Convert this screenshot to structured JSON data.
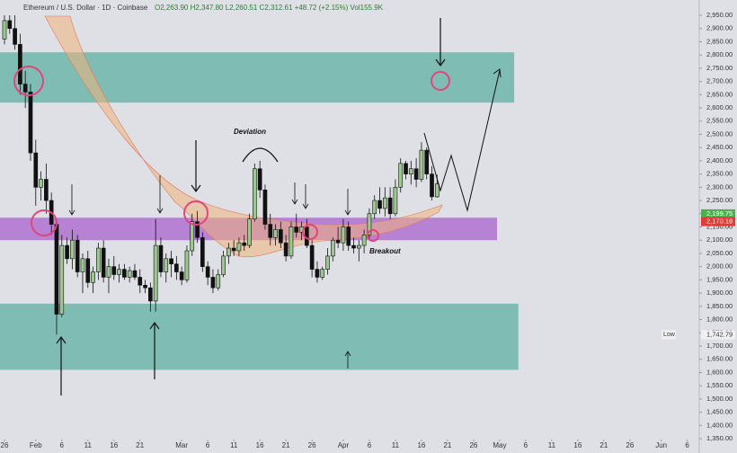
{
  "chart_data": {
    "type": "candlestick",
    "header": {
      "symbol": "Ethereum / U.S. Dollar · 1D · Coinbase",
      "ohlc": "O2,263.90 H2,347.80 L2,260.51 C2,312.61 +48.72 (+2.15%) Vol155.9K"
    },
    "up_color": "#9cc98f",
    "down_color": "#111111",
    "x": [
      0,
      1,
      2,
      3,
      4,
      5,
      6,
      7,
      8,
      9,
      10,
      11,
      12,
      13,
      14,
      15,
      16,
      17,
      18,
      19,
      20,
      21,
      22,
      23,
      24,
      25,
      26,
      27,
      28,
      29,
      30,
      31,
      32,
      33,
      34,
      35,
      36,
      37,
      38,
      39,
      40,
      41,
      42,
      43,
      44,
      45,
      46,
      47,
      48,
      49,
      50,
      51,
      52,
      53,
      54,
      55,
      56,
      57,
      58,
      59,
      60,
      61,
      62,
      63,
      64,
      65,
      66,
      67,
      68,
      69,
      70,
      71,
      72,
      73,
      74,
      75,
      76,
      77,
      78,
      79,
      80,
      81,
      82,
      83
    ],
    "open": [
      2860,
      2930,
      2900,
      2840,
      2690,
      2660,
      2430,
      2300,
      2330,
      2250,
      2160,
      1820,
      2080,
      2030,
      2100,
      1980,
      2030,
      1940,
      1980,
      2070,
      1960,
      2000,
      1970,
      1990,
      1960,
      1985,
      1960,
      1930,
      1920,
      1870,
      2080,
      1980,
      2030,
      2010,
      1980,
      1950,
      2060,
      2170,
      2110,
      2000,
      1960,
      1920,
      1970,
      2040,
      2070,
      2060,
      2090,
      2080,
      2180,
      2370,
      2290,
      2160,
      2110,
      2140,
      2090,
      2040,
      2150,
      2130,
      2150,
      2080,
      1990,
      1960,
      1990,
      2040,
      2100,
      2090,
      2150,
      2080,
      2070,
      2080,
      2120,
      2200,
      2250,
      2220,
      2260,
      2200,
      2300,
      2390,
      2350,
      2370,
      2330,
      2440,
      2350,
      2263.9
    ],
    "high": [
      2950,
      2950,
      2950,
      2880,
      2740,
      2690,
      2480,
      2360,
      2390,
      2280,
      2180,
      2120,
      2110,
      2140,
      2120,
      2050,
      2060,
      2000,
      2090,
      2100,
      2030,
      2040,
      2010,
      2010,
      2000,
      2010,
      1990,
      1950,
      1940,
      2180,
      2110,
      2050,
      2060,
      2040,
      2000,
      2080,
      2200,
      2210,
      2130,
      2020,
      1990,
      1990,
      2060,
      2090,
      2100,
      2110,
      2120,
      2200,
      2390,
      2400,
      2310,
      2200,
      2160,
      2170,
      2120,
      2170,
      2200,
      2170,
      2180,
      2100,
      2020,
      2000,
      2070,
      2110,
      2150,
      2180,
      2170,
      2110,
      2100,
      2140,
      2220,
      2270,
      2300,
      2300,
      2300,
      2330,
      2410,
      2400,
      2400,
      2410,
      2470,
      2450,
      2380,
      2347.8
    ],
    "low": [
      2840,
      2880,
      2820,
      2650,
      2600,
      2400,
      2230,
      2250,
      2200,
      2120,
      1742.79,
      1810,
      2010,
      1990,
      1960,
      1900,
      1920,
      1900,
      1950,
      1940,
      1900,
      1950,
      1940,
      1950,
      1940,
      1950,
      1900,
      1900,
      1830,
      1830,
      1960,
      1940,
      1960,
      1950,
      1930,
      1940,
      2040,
      2090,
      1980,
      1930,
      1900,
      1910,
      1960,
      2010,
      2040,
      2040,
      2060,
      2070,
      2170,
      2260,
      2140,
      2080,
      2080,
      2070,
      2020,
      2030,
      2110,
      2100,
      2070,
      1960,
      1940,
      1950,
      1970,
      2020,
      2070,
      2060,
      2060,
      2050,
      2020,
      2050,
      2100,
      2180,
      2200,
      2190,
      2180,
      2190,
      2280,
      2330,
      2310,
      2300,
      2320,
      2330,
      2250,
      2260.51
    ],
    "close": [
      2930,
      2900,
      2840,
      2690,
      2660,
      2430,
      2300,
      2330,
      2250,
      2160,
      1820,
      2080,
      2030,
      2100,
      1980,
      2030,
      1940,
      1980,
      2070,
      1960,
      2000,
      1970,
      1990,
      1960,
      1985,
      1960,
      1930,
      1920,
      1870,
      2080,
      1980,
      2030,
      2010,
      1980,
      1950,
      2060,
      2170,
      2110,
      2000,
      1960,
      1920,
      1970,
      2040,
      2070,
      2060,
      2090,
      2080,
      2180,
      2370,
      2290,
      2160,
      2110,
      2140,
      2090,
      2040,
      2150,
      2130,
      2150,
      2080,
      1990,
      1960,
      1990,
      2040,
      2100,
      2090,
      2150,
      2080,
      2070,
      2080,
      2120,
      2200,
      2250,
      2220,
      2260,
      2200,
      2300,
      2390,
      2350,
      2370,
      2330,
      2440,
      2350,
      2264,
      2312.61
    ],
    "ylim": [
      1350,
      2950
    ],
    "yticks": [
      {
        "value": 1350,
        "label": "1,350.00"
      },
      {
        "value": 1400,
        "label": "1,400.00"
      },
      {
        "value": 1450,
        "label": "1,450.00"
      },
      {
        "value": 1500,
        "label": "1,500.00"
      },
      {
        "value": 1550,
        "label": "1,550.00"
      },
      {
        "value": 1600,
        "label": "1,600.00"
      },
      {
        "value": 1650,
        "label": "1,650.00"
      },
      {
        "value": 1700,
        "label": "1,700.00"
      },
      {
        "value": 1750,
        "label": "1,750.00"
      },
      {
        "value": 1800,
        "label": "1,800.00"
      },
      {
        "value": 1850,
        "label": "1,850.00"
      },
      {
        "value": 1900,
        "label": "1,900.00"
      },
      {
        "value": 1950,
        "label": "1,950.00"
      },
      {
        "value": 2000,
        "label": "2,000.00"
      },
      {
        "value": 2050,
        "label": "2,050.00"
      },
      {
        "value": 2100,
        "label": "2,100.00"
      },
      {
        "value": 2150,
        "label": "2,150.00"
      },
      {
        "value": 2200,
        "label": "2,200.00"
      },
      {
        "value": 2250,
        "label": "2,250.00"
      },
      {
        "value": 2300,
        "label": "2,300.00"
      },
      {
        "value": 2350,
        "label": "2,350.00"
      },
      {
        "value": 2400,
        "label": "2,400.00"
      },
      {
        "value": 2450,
        "label": "2,450.00"
      },
      {
        "value": 2500,
        "label": "2,500.00"
      },
      {
        "value": 2550,
        "label": "2,550.00"
      },
      {
        "value": 2600,
        "label": "2,600.00"
      },
      {
        "value": 2650,
        "label": "2,650.00"
      },
      {
        "value": 2700,
        "label": "2,700.00"
      },
      {
        "value": 2750,
        "label": "2,750.00"
      },
      {
        "value": 2800,
        "label": "2,800.00"
      },
      {
        "value": 2850,
        "label": "2,850.00"
      },
      {
        "value": 2900,
        "label": "2,900.00"
      },
      {
        "value": 2950,
        "label": "2,950.00"
      }
    ],
    "xlim": [
      -0.86,
      133.3
    ],
    "xticks": [
      {
        "value": 0,
        "label": "26"
      },
      {
        "value": 6,
        "label": "Feb"
      },
      {
        "value": 11,
        "label": "6"
      },
      {
        "value": 16,
        "label": "11"
      },
      {
        "value": 21,
        "label": "16"
      },
      {
        "value": 26,
        "label": "21"
      },
      {
        "value": 34,
        "label": "Mar"
      },
      {
        "value": 39,
        "label": "6"
      },
      {
        "value": 44,
        "label": "11"
      },
      {
        "value": 49,
        "label": "16"
      },
      {
        "value": 54,
        "label": "21"
      },
      {
        "value": 59,
        "label": "26"
      },
      {
        "value": 65,
        "label": "Apr"
      },
      {
        "value": 70,
        "label": "6"
      },
      {
        "value": 75,
        "label": "11"
      },
      {
        "value": 80,
        "label": "16"
      },
      {
        "value": 85,
        "label": "21"
      },
      {
        "value": 90,
        "label": "26"
      },
      {
        "value": 95,
        "label": "May"
      },
      {
        "value": 100,
        "label": "6"
      },
      {
        "value": 105,
        "label": "11"
      },
      {
        "value": 110,
        "label": "16"
      },
      {
        "value": 115,
        "label": "21"
      },
      {
        "value": 120,
        "label": "26"
      },
      {
        "value": 126,
        "label": "Jun"
      },
      {
        "value": 131,
        "label": "6"
      }
    ],
    "zones": [
      {
        "from": 2620,
        "to": 2810,
        "end": 97.8,
        "color": "#6fb5a9"
      },
      {
        "from": 2100,
        "to": 2185,
        "end": 94.5,
        "color": "#b070d0"
      },
      {
        "from": 1610,
        "to": 1860,
        "end": 98.6,
        "color": "#6fb5a9"
      }
    ],
    "price_labels": [
      {
        "value": 2199.75,
        "label": "2,199.75",
        "color": "#4caf50"
      },
      {
        "value": 2170.18,
        "label": "2,170.18",
        "color": "#e53935"
      }
    ],
    "low_label": {
      "text": "Low",
      "value": 1742.79,
      "label": "1,742.79"
    },
    "annotations": {
      "deviation": "Deviation",
      "breakout": "Breakout"
    }
  }
}
